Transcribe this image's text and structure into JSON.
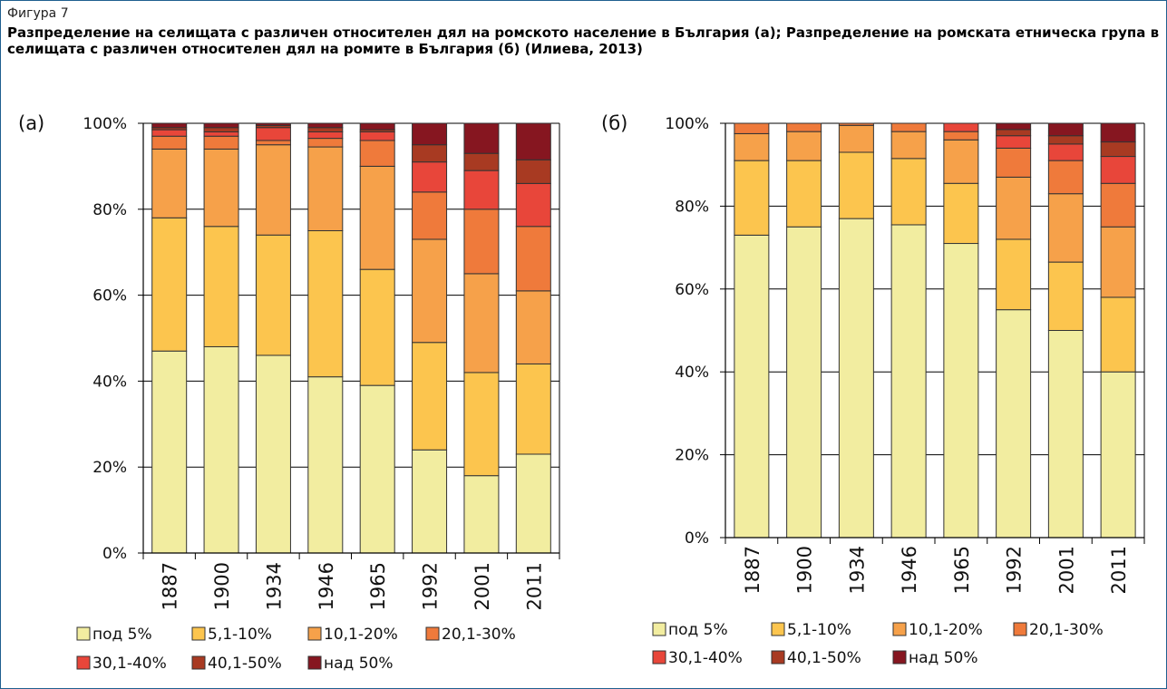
{
  "figure": {
    "label": "Фигура 7",
    "title": "Разпределение на селищата с различен относителен дял на ромското население в България (а); Разпределение на ромската етническа група в селищата с различен относителен дял на ромите в България (б) (Илиева, 2013)"
  },
  "chart_data": [
    {
      "type": "bar",
      "stacked": "percent",
      "panel_label": "(а)",
      "categories": [
        "1887",
        "1900",
        "1934",
        "1946",
        "1965",
        "1992",
        "2001",
        "2011"
      ],
      "y_ticks": [
        "0%",
        "20%",
        "40%",
        "60%",
        "80%",
        "100%"
      ],
      "ylim": [
        0,
        100
      ],
      "legend_placement": "bottom",
      "series": [
        {
          "name": "под 5%",
          "color": "#f2eda0",
          "values": [
            47,
            48,
            46,
            41,
            39,
            24,
            18,
            23
          ]
        },
        {
          "name": "5,1-10%",
          "color": "#fcc54e",
          "values": [
            31,
            28,
            28,
            34,
            27,
            25,
            24,
            21
          ]
        },
        {
          "name": "10,1-20%",
          "color": "#f6a14a",
          "values": [
            16,
            18,
            21,
            19.5,
            24,
            24,
            23,
            17
          ]
        },
        {
          "name": "20,1-30%",
          "color": "#ef7a3b",
          "values": [
            3,
            3,
            1,
            2,
            6,
            11,
            15,
            15
          ]
        },
        {
          "name": "30,1-40%",
          "color": "#e8463a",
          "values": [
            1.5,
            1,
            3,
            1.5,
            2,
            7,
            9,
            10
          ]
        },
        {
          "name": "40,1-50%",
          "color": "#a83a22",
          "values": [
            0.5,
            1,
            0.5,
            1,
            0.5,
            4,
            4,
            5.5
          ]
        },
        {
          "name": "над 50%",
          "color": "#861620",
          "values": [
            1,
            1,
            0.5,
            1,
            1.5,
            5,
            7,
            8.5
          ]
        }
      ]
    },
    {
      "type": "bar",
      "stacked": "percent",
      "panel_label": "(б)",
      "categories": [
        "1887",
        "1900",
        "1934",
        "1946",
        "1965",
        "1992",
        "2001",
        "2011"
      ],
      "y_ticks": [
        "0%",
        "20%",
        "40%",
        "60%",
        "80%",
        "100%"
      ],
      "ylim": [
        0,
        100
      ],
      "legend_placement": "bottom",
      "series": [
        {
          "name": "под 5%",
          "color": "#f2eda0",
          "values": [
            73,
            75,
            77,
            75.5,
            71,
            55,
            50,
            40
          ]
        },
        {
          "name": "5,1-10%",
          "color": "#fcc54e",
          "values": [
            18,
            16,
            16,
            16,
            14.5,
            17,
            16.5,
            18
          ]
        },
        {
          "name": "10,1-20%",
          "color": "#f6a14a",
          "values": [
            6.5,
            7,
            6.5,
            6.5,
            10.5,
            15,
            16.5,
            17
          ]
        },
        {
          "name": "20,1-30%",
          "color": "#ef7a3b",
          "values": [
            2.5,
            2,
            0.5,
            2,
            2,
            7,
            8,
            10.5
          ]
        },
        {
          "name": "30,1-40%",
          "color": "#e8463a",
          "values": [
            0,
            0,
            0,
            0,
            2,
            3,
            4,
            6.5
          ]
        },
        {
          "name": "40,1-50%",
          "color": "#a83a22",
          "values": [
            0,
            0,
            0,
            0,
            0,
            1.5,
            2,
            3.5
          ]
        },
        {
          "name": "над 50%",
          "color": "#861620",
          "values": [
            0,
            0,
            0,
            0,
            0,
            1.5,
            3,
            4.5
          ]
        }
      ]
    }
  ]
}
